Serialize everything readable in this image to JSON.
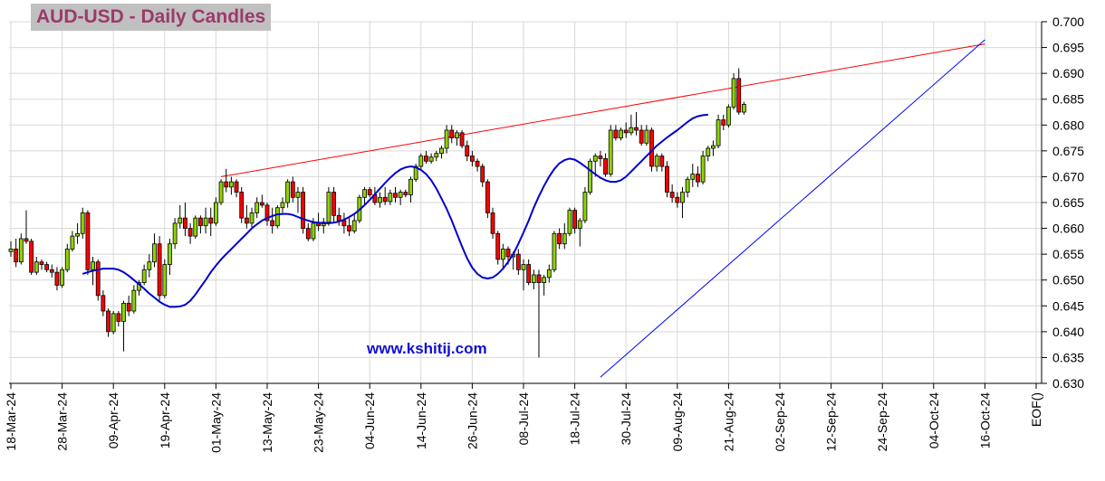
{
  "chart_data": {
    "type": "candlestick",
    "title": "AUD-USD - Daily Candles",
    "watermark": "www.kshitij.com",
    "ylim": [
      0.63,
      0.7
    ],
    "y_ticks": [
      "0.630",
      "0.635",
      "0.640",
      "0.645",
      "0.650",
      "0.655",
      "0.660",
      "0.665",
      "0.670",
      "0.675",
      "0.680",
      "0.685",
      "0.690",
      "0.695",
      "0.700"
    ],
    "x_ticks": [
      "18-Mar-24",
      "28-Mar-24",
      "09-Apr-24",
      "19-Apr-24",
      "01-May-24",
      "13-May-24",
      "23-May-24",
      "04-Jun-24",
      "14-Jun-24",
      "26-Jun-24",
      "08-Jul-24",
      "18-Jul-24",
      "30-Jul-24",
      "09-Aug-24",
      "21-Aug-24",
      "02-Sep-24",
      "12-Sep-24",
      "24-Sep-24",
      "04-Oct-24",
      "16-Oct-24",
      "EOF()"
    ],
    "bullish_color": "#8fd400",
    "bearish_color": "#ff0000",
    "candles": [
      {
        "o": 0.6555,
        "h": 0.6575,
        "l": 0.6545,
        "c": 0.656
      },
      {
        "o": 0.656,
        "h": 0.658,
        "l": 0.6525,
        "c": 0.6535
      },
      {
        "o": 0.6535,
        "h": 0.659,
        "l": 0.653,
        "c": 0.658
      },
      {
        "o": 0.658,
        "h": 0.6635,
        "l": 0.657,
        "c": 0.6575
      },
      {
        "o": 0.6575,
        "h": 0.658,
        "l": 0.651,
        "c": 0.6515
      },
      {
        "o": 0.6515,
        "h": 0.6545,
        "l": 0.651,
        "c": 0.6535
      },
      {
        "o": 0.6535,
        "h": 0.654,
        "l": 0.652,
        "c": 0.653
      },
      {
        "o": 0.653,
        "h": 0.6535,
        "l": 0.6515,
        "c": 0.652
      },
      {
        "o": 0.652,
        "h": 0.653,
        "l": 0.6505,
        "c": 0.6515
      },
      {
        "o": 0.6515,
        "h": 0.6525,
        "l": 0.648,
        "c": 0.649
      },
      {
        "o": 0.649,
        "h": 0.6525,
        "l": 0.6485,
        "c": 0.652
      },
      {
        "o": 0.652,
        "h": 0.657,
        "l": 0.6515,
        "c": 0.656
      },
      {
        "o": 0.656,
        "h": 0.6595,
        "l": 0.6555,
        "c": 0.6585
      },
      {
        "o": 0.6585,
        "h": 0.661,
        "l": 0.657,
        "c": 0.659
      },
      {
        "o": 0.659,
        "h": 0.664,
        "l": 0.658,
        "c": 0.663
      },
      {
        "o": 0.663,
        "h": 0.6635,
        "l": 0.651,
        "c": 0.652
      },
      {
        "o": 0.652,
        "h": 0.6545,
        "l": 0.649,
        "c": 0.6535
      },
      {
        "o": 0.6535,
        "h": 0.654,
        "l": 0.646,
        "c": 0.647
      },
      {
        "o": 0.647,
        "h": 0.648,
        "l": 0.643,
        "c": 0.644
      },
      {
        "o": 0.644,
        "h": 0.6445,
        "l": 0.639,
        "c": 0.64
      },
      {
        "o": 0.64,
        "h": 0.644,
        "l": 0.6395,
        "c": 0.6435
      },
      {
        "o": 0.6435,
        "h": 0.644,
        "l": 0.641,
        "c": 0.642
      },
      {
        "o": 0.642,
        "h": 0.646,
        "l": 0.6362,
        "c": 0.6455
      },
      {
        "o": 0.6455,
        "h": 0.647,
        "l": 0.643,
        "c": 0.644
      },
      {
        "o": 0.644,
        "h": 0.649,
        "l": 0.6435,
        "c": 0.648
      },
      {
        "o": 0.648,
        "h": 0.65,
        "l": 0.647,
        "c": 0.6495
      },
      {
        "o": 0.6495,
        "h": 0.653,
        "l": 0.649,
        "c": 0.652
      },
      {
        "o": 0.652,
        "h": 0.655,
        "l": 0.6505,
        "c": 0.6535
      },
      {
        "o": 0.6535,
        "h": 0.659,
        "l": 0.6525,
        "c": 0.657
      },
      {
        "o": 0.657,
        "h": 0.6585,
        "l": 0.646,
        "c": 0.647
      },
      {
        "o": 0.647,
        "h": 0.654,
        "l": 0.6465,
        "c": 0.653
      },
      {
        "o": 0.653,
        "h": 0.658,
        "l": 0.651,
        "c": 0.657
      },
      {
        "o": 0.657,
        "h": 0.662,
        "l": 0.656,
        "c": 0.661
      },
      {
        "o": 0.661,
        "h": 0.6645,
        "l": 0.66,
        "c": 0.662
      },
      {
        "o": 0.662,
        "h": 0.665,
        "l": 0.6585,
        "c": 0.66
      },
      {
        "o": 0.66,
        "h": 0.661,
        "l": 0.657,
        "c": 0.6585
      },
      {
        "o": 0.6585,
        "h": 0.6625,
        "l": 0.658,
        "c": 0.662
      },
      {
        "o": 0.662,
        "h": 0.6625,
        "l": 0.659,
        "c": 0.6605
      },
      {
        "o": 0.6605,
        "h": 0.664,
        "l": 0.659,
        "c": 0.662
      },
      {
        "o": 0.662,
        "h": 0.664,
        "l": 0.6585,
        "c": 0.661
      },
      {
        "o": 0.661,
        "h": 0.666,
        "l": 0.6605,
        "c": 0.665
      },
      {
        "o": 0.665,
        "h": 0.6695,
        "l": 0.6645,
        "c": 0.669
      },
      {
        "o": 0.669,
        "h": 0.6715,
        "l": 0.667,
        "c": 0.668
      },
      {
        "o": 0.668,
        "h": 0.67,
        "l": 0.6665,
        "c": 0.669
      },
      {
        "o": 0.669,
        "h": 0.6695,
        "l": 0.666,
        "c": 0.667
      },
      {
        "o": 0.667,
        "h": 0.668,
        "l": 0.661,
        "c": 0.662
      },
      {
        "o": 0.662,
        "h": 0.6645,
        "l": 0.66,
        "c": 0.661
      },
      {
        "o": 0.661,
        "h": 0.664,
        "l": 0.66,
        "c": 0.663
      },
      {
        "o": 0.663,
        "h": 0.666,
        "l": 0.662,
        "c": 0.665
      },
      {
        "o": 0.665,
        "h": 0.6665,
        "l": 0.664,
        "c": 0.6645
      },
      {
        "o": 0.6645,
        "h": 0.665,
        "l": 0.6605,
        "c": 0.6615
      },
      {
        "o": 0.6615,
        "h": 0.664,
        "l": 0.659,
        "c": 0.6605
      },
      {
        "o": 0.6605,
        "h": 0.6645,
        "l": 0.66,
        "c": 0.664
      },
      {
        "o": 0.664,
        "h": 0.666,
        "l": 0.663,
        "c": 0.665
      },
      {
        "o": 0.665,
        "h": 0.6695,
        "l": 0.664,
        "c": 0.669
      },
      {
        "o": 0.669,
        "h": 0.67,
        "l": 0.665,
        "c": 0.666
      },
      {
        "o": 0.666,
        "h": 0.668,
        "l": 0.663,
        "c": 0.667
      },
      {
        "o": 0.667,
        "h": 0.668,
        "l": 0.659,
        "c": 0.66
      },
      {
        "o": 0.66,
        "h": 0.661,
        "l": 0.6575,
        "c": 0.658
      },
      {
        "o": 0.658,
        "h": 0.662,
        "l": 0.6575,
        "c": 0.661
      },
      {
        "o": 0.661,
        "h": 0.663,
        "l": 0.6595,
        "c": 0.6605
      },
      {
        "o": 0.6605,
        "h": 0.662,
        "l": 0.659,
        "c": 0.6612
      },
      {
        "o": 0.6612,
        "h": 0.668,
        "l": 0.6605,
        "c": 0.667
      },
      {
        "o": 0.667,
        "h": 0.668,
        "l": 0.661,
        "c": 0.6625
      },
      {
        "o": 0.6625,
        "h": 0.664,
        "l": 0.6605,
        "c": 0.6615
      },
      {
        "o": 0.6615,
        "h": 0.663,
        "l": 0.659,
        "c": 0.6605
      },
      {
        "o": 0.6605,
        "h": 0.662,
        "l": 0.6585,
        "c": 0.6595
      },
      {
        "o": 0.6595,
        "h": 0.663,
        "l": 0.659,
        "c": 0.6615
      },
      {
        "o": 0.6615,
        "h": 0.6665,
        "l": 0.661,
        "c": 0.666
      },
      {
        "o": 0.666,
        "h": 0.668,
        "l": 0.6645,
        "c": 0.6675
      },
      {
        "o": 0.6675,
        "h": 0.668,
        "l": 0.666,
        "c": 0.6665
      },
      {
        "o": 0.6665,
        "h": 0.668,
        "l": 0.6645,
        "c": 0.665
      },
      {
        "o": 0.665,
        "h": 0.667,
        "l": 0.664,
        "c": 0.666
      },
      {
        "o": 0.666,
        "h": 0.668,
        "l": 0.6645,
        "c": 0.6652
      },
      {
        "o": 0.6652,
        "h": 0.6675,
        "l": 0.6645,
        "c": 0.6668
      },
      {
        "o": 0.6668,
        "h": 0.668,
        "l": 0.665,
        "c": 0.666
      },
      {
        "o": 0.666,
        "h": 0.6675,
        "l": 0.6645,
        "c": 0.667
      },
      {
        "o": 0.667,
        "h": 0.6675,
        "l": 0.666,
        "c": 0.6665
      },
      {
        "o": 0.6665,
        "h": 0.67,
        "l": 0.665,
        "c": 0.6695
      },
      {
        "o": 0.6695,
        "h": 0.6725,
        "l": 0.669,
        "c": 0.672
      },
      {
        "o": 0.672,
        "h": 0.6745,
        "l": 0.6715,
        "c": 0.674
      },
      {
        "o": 0.674,
        "h": 0.675,
        "l": 0.6725,
        "c": 0.673
      },
      {
        "o": 0.673,
        "h": 0.6745,
        "l": 0.6725,
        "c": 0.6738
      },
      {
        "o": 0.6738,
        "h": 0.675,
        "l": 0.673,
        "c": 0.6745
      },
      {
        "o": 0.6745,
        "h": 0.676,
        "l": 0.6735,
        "c": 0.6755
      },
      {
        "o": 0.6755,
        "h": 0.68,
        "l": 0.6745,
        "c": 0.679
      },
      {
        "o": 0.679,
        "h": 0.68,
        "l": 0.6765,
        "c": 0.6775
      },
      {
        "o": 0.6775,
        "h": 0.679,
        "l": 0.676,
        "c": 0.6785
      },
      {
        "o": 0.6785,
        "h": 0.679,
        "l": 0.6755,
        "c": 0.676
      },
      {
        "o": 0.676,
        "h": 0.677,
        "l": 0.673,
        "c": 0.674
      },
      {
        "o": 0.674,
        "h": 0.675,
        "l": 0.672,
        "c": 0.673
      },
      {
        "o": 0.673,
        "h": 0.6735,
        "l": 0.671,
        "c": 0.672
      },
      {
        "o": 0.672,
        "h": 0.6725,
        "l": 0.668,
        "c": 0.669
      },
      {
        "o": 0.669,
        "h": 0.6695,
        "l": 0.662,
        "c": 0.663
      },
      {
        "o": 0.663,
        "h": 0.664,
        "l": 0.658,
        "c": 0.659
      },
      {
        "o": 0.659,
        "h": 0.6595,
        "l": 0.653,
        "c": 0.654
      },
      {
        "o": 0.654,
        "h": 0.657,
        "l": 0.652,
        "c": 0.656
      },
      {
        "o": 0.656,
        "h": 0.6565,
        "l": 0.653,
        "c": 0.6545
      },
      {
        "o": 0.6545,
        "h": 0.6555,
        "l": 0.652,
        "c": 0.655
      },
      {
        "o": 0.655,
        "h": 0.656,
        "l": 0.651,
        "c": 0.652
      },
      {
        "o": 0.652,
        "h": 0.654,
        "l": 0.648,
        "c": 0.653
      },
      {
        "o": 0.653,
        "h": 0.654,
        "l": 0.649,
        "c": 0.6495
      },
      {
        "o": 0.6495,
        "h": 0.652,
        "l": 0.6482,
        "c": 0.651
      },
      {
        "o": 0.651,
        "h": 0.652,
        "l": 0.635,
        "c": 0.6495
      },
      {
        "o": 0.6495,
        "h": 0.651,
        "l": 0.647,
        "c": 0.6505
      },
      {
        "o": 0.6505,
        "h": 0.653,
        "l": 0.6495,
        "c": 0.652
      },
      {
        "o": 0.652,
        "h": 0.6595,
        "l": 0.6515,
        "c": 0.659
      },
      {
        "o": 0.659,
        "h": 0.66,
        "l": 0.656,
        "c": 0.657
      },
      {
        "o": 0.657,
        "h": 0.661,
        "l": 0.656,
        "c": 0.659
      },
      {
        "o": 0.659,
        "h": 0.664,
        "l": 0.6585,
        "c": 0.6635
      },
      {
        "o": 0.6635,
        "h": 0.664,
        "l": 0.659,
        "c": 0.66
      },
      {
        "o": 0.66,
        "h": 0.662,
        "l": 0.6565,
        "c": 0.6615
      },
      {
        "o": 0.6615,
        "h": 0.668,
        "l": 0.661,
        "c": 0.667
      },
      {
        "o": 0.667,
        "h": 0.6735,
        "l": 0.6665,
        "c": 0.673
      },
      {
        "o": 0.673,
        "h": 0.6745,
        "l": 0.67,
        "c": 0.674
      },
      {
        "o": 0.674,
        "h": 0.675,
        "l": 0.672,
        "c": 0.6735
      },
      {
        "o": 0.6735,
        "h": 0.6745,
        "l": 0.67,
        "c": 0.6705
      },
      {
        "o": 0.6705,
        "h": 0.68,
        "l": 0.67,
        "c": 0.679
      },
      {
        "o": 0.679,
        "h": 0.68,
        "l": 0.677,
        "c": 0.6775
      },
      {
        "o": 0.6775,
        "h": 0.6795,
        "l": 0.677,
        "c": 0.679
      },
      {
        "o": 0.679,
        "h": 0.6805,
        "l": 0.6775,
        "c": 0.6785
      },
      {
        "o": 0.6785,
        "h": 0.682,
        "l": 0.678,
        "c": 0.6795
      },
      {
        "o": 0.6795,
        "h": 0.6825,
        "l": 0.678,
        "c": 0.679
      },
      {
        "o": 0.679,
        "h": 0.68,
        "l": 0.676,
        "c": 0.6765
      },
      {
        "o": 0.6765,
        "h": 0.68,
        "l": 0.676,
        "c": 0.679
      },
      {
        "o": 0.679,
        "h": 0.6795,
        "l": 0.671,
        "c": 0.672
      },
      {
        "o": 0.672,
        "h": 0.6745,
        "l": 0.671,
        "c": 0.674
      },
      {
        "o": 0.674,
        "h": 0.6745,
        "l": 0.671,
        "c": 0.672
      },
      {
        "o": 0.672,
        "h": 0.673,
        "l": 0.666,
        "c": 0.667
      },
      {
        "o": 0.667,
        "h": 0.6685,
        "l": 0.665,
        "c": 0.666
      },
      {
        "o": 0.666,
        "h": 0.667,
        "l": 0.664,
        "c": 0.665
      },
      {
        "o": 0.665,
        "h": 0.668,
        "l": 0.662,
        "c": 0.667
      },
      {
        "o": 0.667,
        "h": 0.67,
        "l": 0.666,
        "c": 0.6695
      },
      {
        "o": 0.6695,
        "h": 0.6725,
        "l": 0.668,
        "c": 0.6705
      },
      {
        "o": 0.6705,
        "h": 0.672,
        "l": 0.668,
        "c": 0.669
      },
      {
        "o": 0.669,
        "h": 0.675,
        "l": 0.6685,
        "c": 0.674
      },
      {
        "o": 0.674,
        "h": 0.676,
        "l": 0.673,
        "c": 0.6755
      },
      {
        "o": 0.6755,
        "h": 0.677,
        "l": 0.674,
        "c": 0.676
      },
      {
        "o": 0.676,
        "h": 0.682,
        "l": 0.6755,
        "c": 0.681
      },
      {
        "o": 0.681,
        "h": 0.682,
        "l": 0.679,
        "c": 0.68
      },
      {
        "o": 0.68,
        "h": 0.684,
        "l": 0.6795,
        "c": 0.6835
      },
      {
        "o": 0.6835,
        "h": 0.69,
        "l": 0.683,
        "c": 0.689
      },
      {
        "o": 0.689,
        "h": 0.691,
        "l": 0.682,
        "c": 0.6825
      },
      {
        "o": 0.6825,
        "h": 0.6845,
        "l": 0.682,
        "c": 0.684
      }
    ],
    "moving_average": [
      0.6512,
      0.6515,
      0.6518,
      0.652,
      0.6522,
      0.6522,
      0.6522,
      0.652,
      0.6515,
      0.6508,
      0.65,
      0.6492,
      0.6483,
      0.6474,
      0.6466,
      0.6458,
      0.6452,
      0.6448,
      0.6448,
      0.6449,
      0.6452,
      0.646,
      0.6472,
      0.6486,
      0.65,
      0.6515,
      0.6528,
      0.654,
      0.655,
      0.656,
      0.657,
      0.658,
      0.659,
      0.66,
      0.6608,
      0.6615,
      0.662,
      0.6624,
      0.6627,
      0.6628,
      0.6628,
      0.6626,
      0.6622,
      0.6618,
      0.6615,
      0.6612,
      0.6611,
      0.661,
      0.661,
      0.6611,
      0.6613,
      0.6617,
      0.6622,
      0.6628,
      0.6636,
      0.6645,
      0.6655,
      0.6666,
      0.6677,
      0.6688,
      0.6698,
      0.6707,
      0.6714,
      0.6718,
      0.672,
      0.6718,
      0.6713,
      0.6705,
      0.6693,
      0.6677,
      0.6658,
      0.6638,
      0.6615,
      0.659,
      0.6565,
      0.6542,
      0.6524,
      0.6512,
      0.6505,
      0.6503,
      0.6505,
      0.6512,
      0.6522,
      0.6535,
      0.655,
      0.657,
      0.6592,
      0.6615,
      0.664,
      0.6662,
      0.6682,
      0.67,
      0.6715,
      0.6726,
      0.6732,
      0.6735,
      0.6733,
      0.6727,
      0.672,
      0.6712,
      0.6705,
      0.6698,
      0.6693,
      0.669,
      0.669,
      0.6693,
      0.67,
      0.671,
      0.672,
      0.673,
      0.674,
      0.675,
      0.676,
      0.6768,
      0.6776,
      0.6783,
      0.679,
      0.6798,
      0.6806,
      0.6813,
      0.6817,
      0.6819,
      0.682
    ],
    "ma_start_index": 14,
    "ma_color": "#0000cc",
    "resistance_line": {
      "from": {
        "index": 41,
        "value": 0.67
      },
      "to": {
        "index": 190,
        "value": 0.6957
      },
      "color": "#ff0000"
    },
    "support_line": {
      "from": {
        "index": 115,
        "value": 0.6312
      },
      "to": {
        "index": 190,
        "value": 0.6965
      },
      "color": "#0000ff"
    },
    "grid": true
  }
}
